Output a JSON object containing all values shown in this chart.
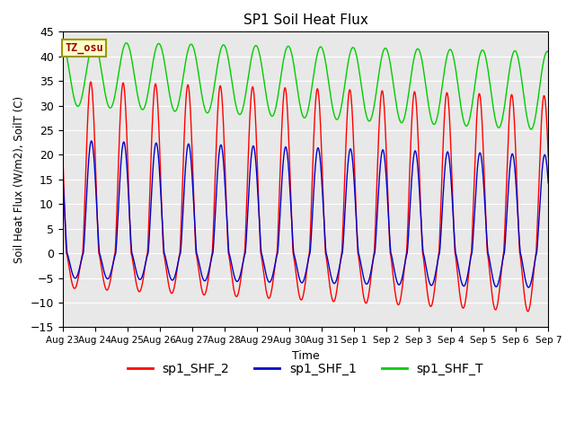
{
  "title": "SP1 Soil Heat Flux",
  "xlabel": "Time",
  "ylabel": "Soil Heat Flux (W/m2), SoilT (C)",
  "ylim": [
    -15,
    45
  ],
  "yticks": [
    -15,
    -10,
    -5,
    0,
    5,
    10,
    15,
    20,
    25,
    30,
    35,
    40,
    45
  ],
  "bg_color": "#e8e8e8",
  "fig_color": "#ffffff",
  "line_colors": {
    "sp1_SHF_2": "#ff0000",
    "sp1_SHF_1": "#0000cc",
    "sp1_SHF_T": "#00cc00"
  },
  "tz_label": "TZ_osu",
  "tz_color": "#990000",
  "tz_bg": "#ffffcc",
  "tz_border": "#999900",
  "x_tick_labels": [
    "Aug 23",
    "Aug 24",
    "Aug 25",
    "Aug 26",
    "Aug 27",
    "Aug 28",
    "Aug 29",
    "Aug 30",
    "Aug 31",
    "Sep 1",
    "Sep 2",
    "Sep 3",
    "Sep 4",
    "Sep 5",
    "Sep 6",
    "Sep 7"
  ]
}
